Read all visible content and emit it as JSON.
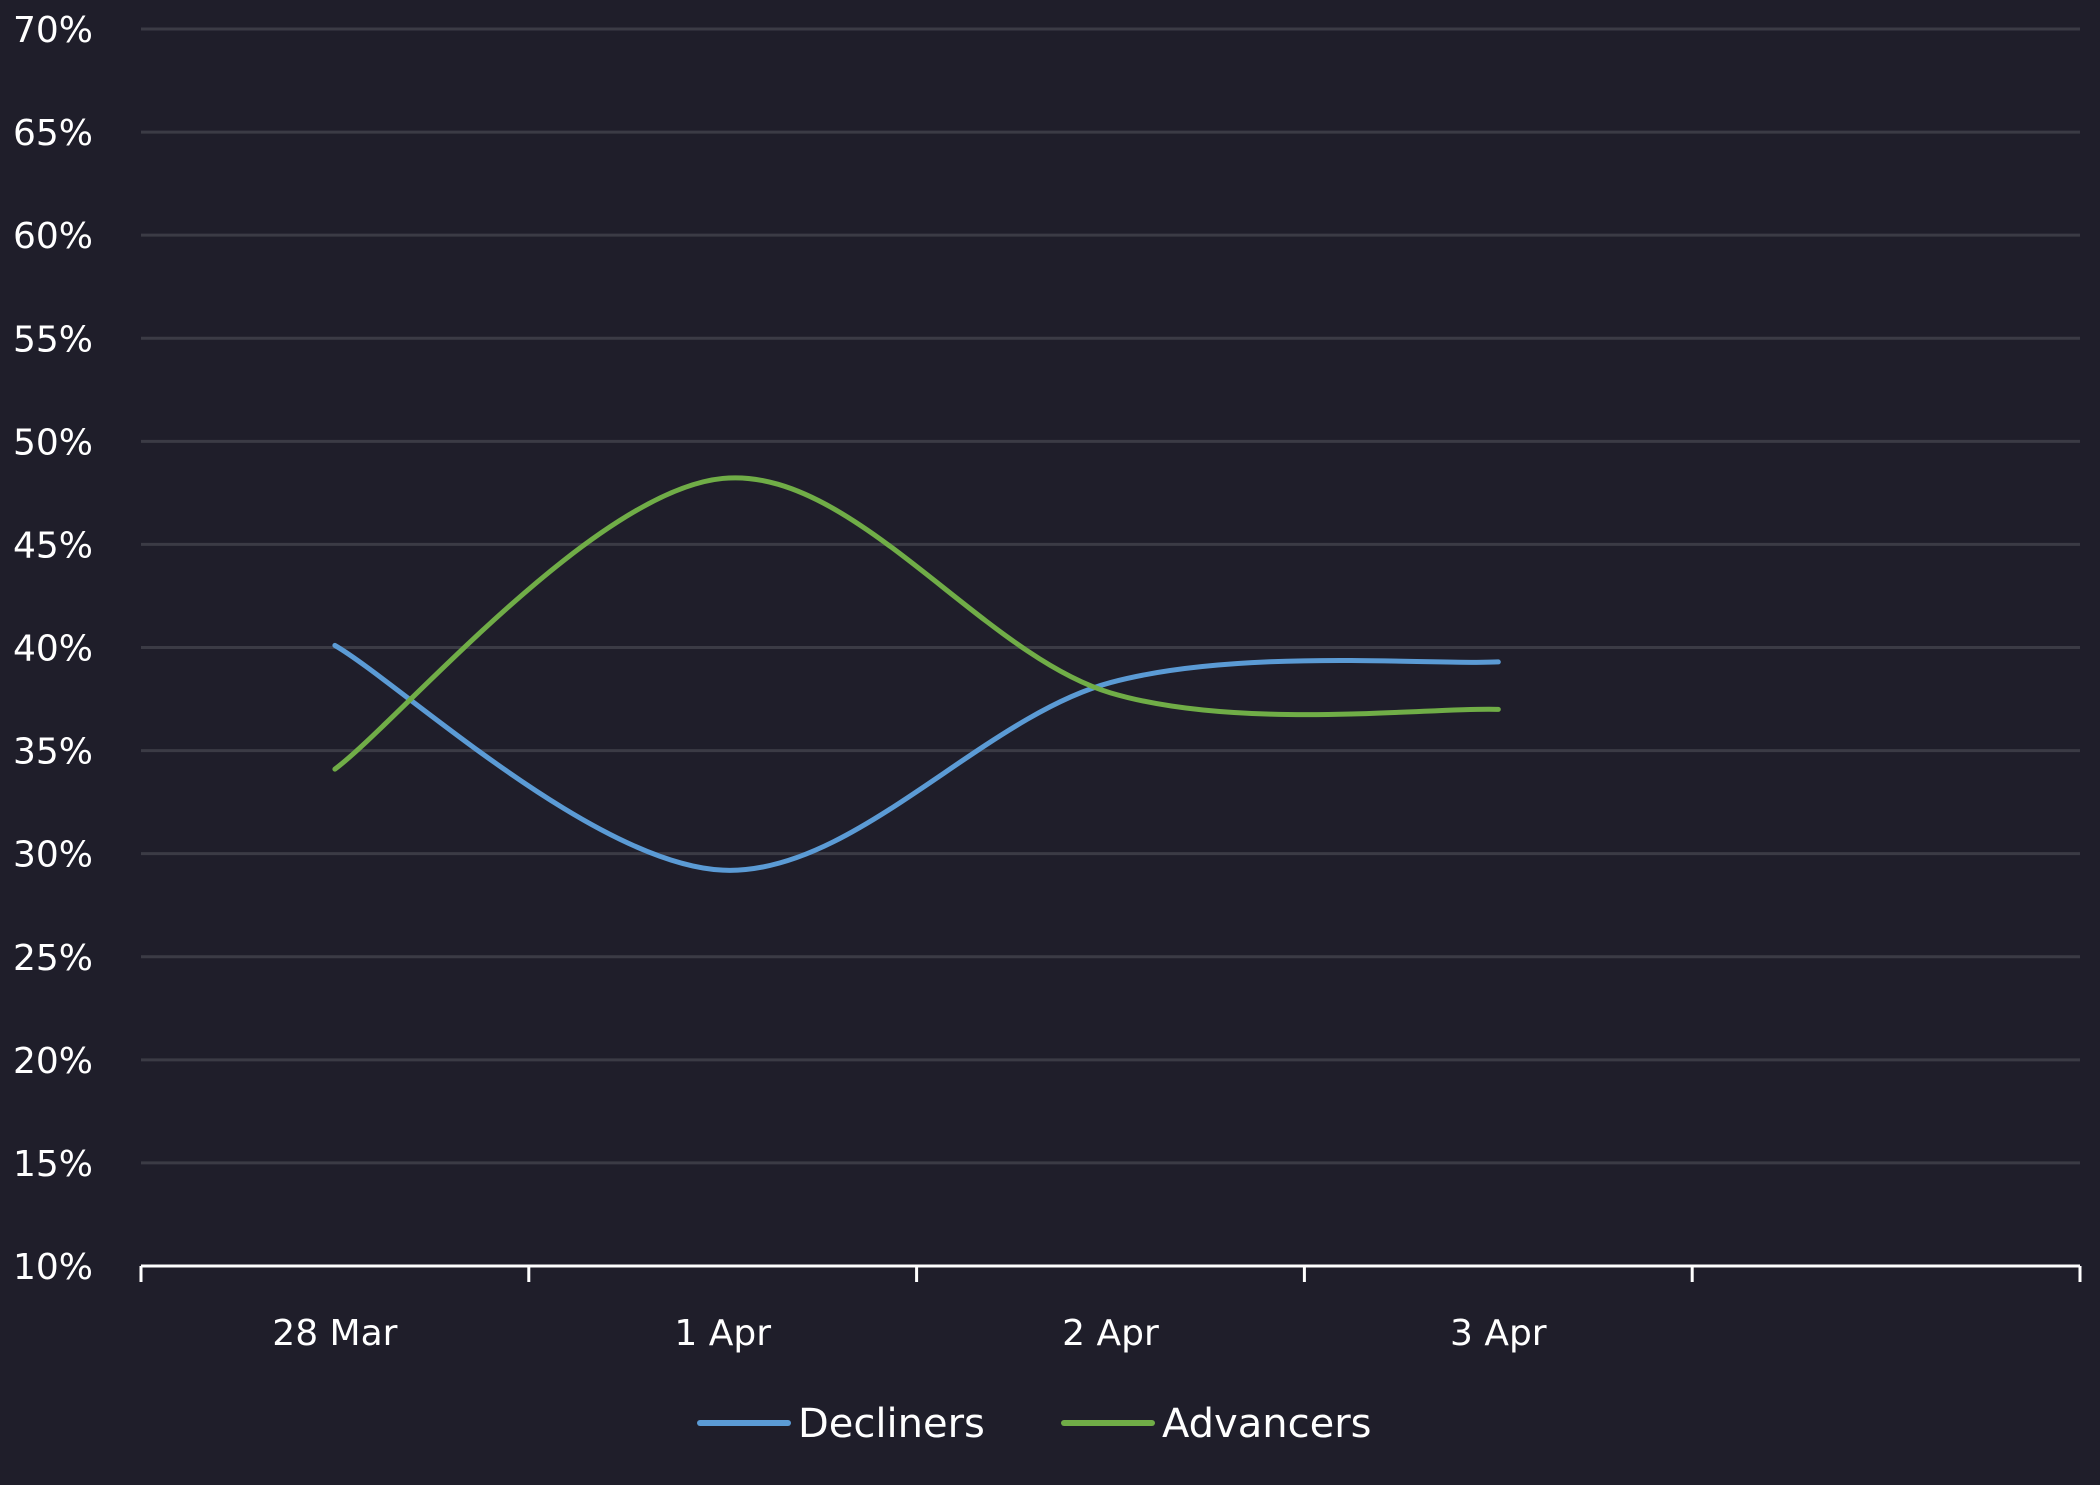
{
  "chart_data": {
    "type": "line",
    "categories": [
      "28 Mar",
      "1 Apr",
      "2 Apr",
      "3 Apr"
    ],
    "series": [
      {
        "name": "Decliners",
        "values": [
          40.1,
          29.2,
          38.3,
          39.3
        ],
        "color": "#5b9bd5"
      },
      {
        "name": "Advancers",
        "values": [
          34.1,
          48.2,
          37.8,
          37.0
        ],
        "color": "#70ad47"
      }
    ],
    "yticks": [
      "70%",
      "65%",
      "60%",
      "55%",
      "50%",
      "45%",
      "40%",
      "35%",
      "30%",
      "25%",
      "20%",
      "15%",
      "10%"
    ],
    "ylim": [
      10,
      70
    ],
    "y_step": 5,
    "y_unit": "%",
    "grid": true,
    "smooth": true,
    "legend_position": "bottom",
    "colors": {
      "background": "#1f1e2a",
      "gridline": "#3b3b45",
      "axis": "#ffffff",
      "text": "#ffffff"
    }
  }
}
